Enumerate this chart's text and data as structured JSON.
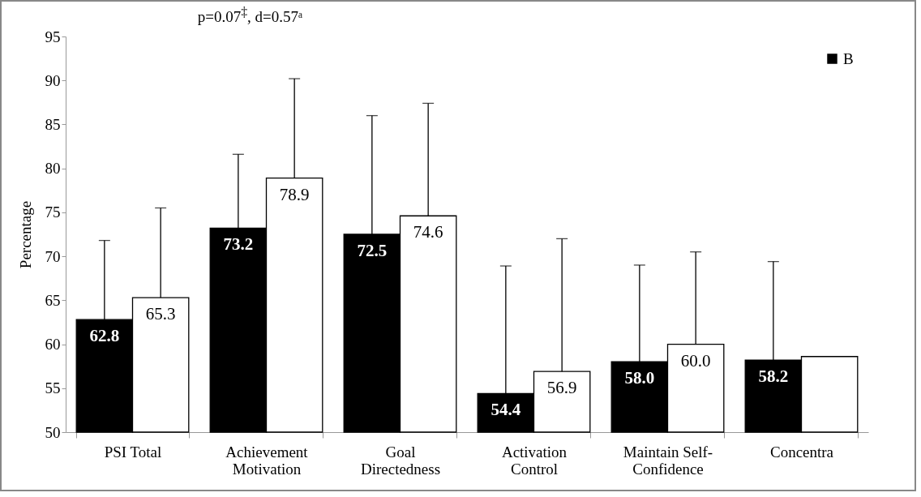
{
  "chart_data": {
    "type": "bar",
    "ylabel": "Percentage",
    "categories": [
      "PSI Total",
      "Achievement Motivation",
      "Goal Directedness",
      "Activation Control",
      "Maintain Self-Confidence",
      "Concentra"
    ],
    "series": [
      {
        "name": "B",
        "color": "#000000",
        "values": [
          62.8,
          73.2,
          72.5,
          54.4,
          58.0,
          58.2
        ],
        "errors": [
          [
            62.8,
            71.8
          ],
          [
            73.2,
            81.6
          ],
          [
            72.5,
            86.0
          ],
          [
            54.4,
            68.9
          ],
          [
            58.0,
            69.0
          ],
          [
            58.2,
            69.4
          ]
        ],
        "value_labels": [
          "62.8",
          "73.2",
          "72.5",
          "54.4",
          "58.0",
          "58.2"
        ]
      },
      {
        "color": "#ffffff",
        "values": [
          65.3,
          78.9,
          74.6,
          56.9,
          60.0,
          58.6
        ],
        "errors": [
          [
            65.3,
            75.5
          ],
          [
            78.9,
            90.2
          ],
          [
            74.6,
            87.4
          ],
          [
            56.9,
            72.0
          ],
          [
            60.0,
            70.5
          ],
          null
        ],
        "value_labels": [
          "65.3",
          "78.9",
          "74.6",
          "56.9",
          "60.0",
          null
        ]
      }
    ],
    "ylim": [
      50,
      95
    ],
    "yticks": [
      50,
      55,
      60,
      65,
      70,
      75,
      80,
      85,
      90,
      95
    ],
    "grid": false,
    "legend": "top right",
    "annotations": [
      "p=0.07$^{‡}$, d=0.57ᵃ"
    ]
  }
}
